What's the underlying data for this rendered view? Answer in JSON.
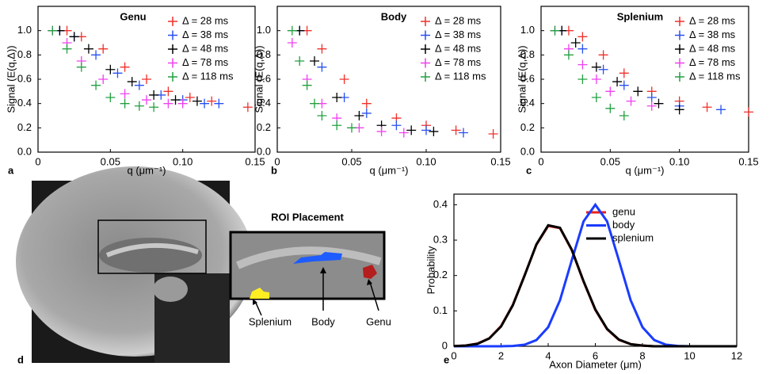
{
  "chart_data": [
    {
      "type": "scatter",
      "title": "Genu",
      "panel_label": "a",
      "xlabel": "q (μm⁻¹)",
      "ylabel": "Signal  (E(q,Δ))",
      "xlim": [
        0,
        0.15
      ],
      "ylim": [
        0,
        1.2
      ],
      "xticks": [
        0,
        0.05,
        {
          "value": 0.1,
          "label": "0.10"
        },
        0.15
      ],
      "yticks": [
        {
          "value": 0,
          "label": "0.0"
        },
        0.2,
        0.4,
        0.6,
        0.8,
        {
          "value": 1,
          "label": "1.0"
        }
      ],
      "series": [
        {
          "name": "Δ = 28 ms",
          "color": "#f0302a",
          "x": [
            0.02,
            0.03,
            0.045,
            0.06,
            0.075,
            0.09,
            0.105,
            0.12,
            0.145
          ],
          "values": [
            1.0,
            0.95,
            0.85,
            0.7,
            0.6,
            0.5,
            0.45,
            0.42,
            0.37
          ]
        },
        {
          "name": "Δ = 38 ms",
          "color": "#2850f0",
          "x": [
            0.015,
            0.025,
            0.04,
            0.055,
            0.07,
            0.085,
            0.1,
            0.115,
            0.125
          ],
          "values": [
            1.0,
            0.95,
            0.8,
            0.65,
            0.55,
            0.47,
            0.43,
            0.4,
            0.4
          ]
        },
        {
          "name": "Δ = 48 ms",
          "color": "#000000",
          "x": [
            0.015,
            0.025,
            0.035,
            0.05,
            0.065,
            0.08,
            0.095,
            0.11
          ],
          "values": [
            1.0,
            0.95,
            0.85,
            0.68,
            0.58,
            0.47,
            0.43,
            0.42
          ]
        },
        {
          "name": "Δ = 78 ms",
          "color": "#f040f0",
          "x": [
            0.01,
            0.02,
            0.03,
            0.045,
            0.06,
            0.075,
            0.09,
            0.1
          ],
          "values": [
            1.0,
            0.9,
            0.75,
            0.6,
            0.48,
            0.43,
            0.4,
            0.4
          ]
        },
        {
          "name": "Δ = 118 ms",
          "color": "#22a040",
          "x": [
            0.01,
            0.02,
            0.03,
            0.04,
            0.05,
            0.06,
            0.07,
            0.08
          ],
          "values": [
            1.0,
            0.85,
            0.7,
            0.55,
            0.45,
            0.4,
            0.38,
            0.37
          ]
        }
      ]
    },
    {
      "type": "scatter",
      "title": "Body",
      "panel_label": "b",
      "xlabel": "q (μm⁻¹)",
      "ylabel": "Signal  (E(q,Δ))",
      "xlim": [
        0,
        0.15
      ],
      "ylim": [
        0,
        1.2
      ],
      "xticks": [
        0,
        0.05,
        {
          "value": 0.1,
          "label": "0.10"
        },
        0.15
      ],
      "yticks": [
        {
          "value": 0,
          "label": "0.0"
        },
        0.2,
        0.4,
        0.6,
        0.8,
        {
          "value": 1,
          "label": "1.0"
        }
      ],
      "series": [
        {
          "name": "Δ = 28 ms",
          "color": "#f0302a",
          "x": [
            0.02,
            0.03,
            0.045,
            0.06,
            0.08,
            0.1,
            0.12,
            0.145
          ],
          "values": [
            1.0,
            0.85,
            0.6,
            0.4,
            0.28,
            0.22,
            0.18,
            0.15
          ]
        },
        {
          "name": "Δ = 38 ms",
          "color": "#2850f0",
          "x": [
            0.015,
            0.03,
            0.045,
            0.06,
            0.08,
            0.1,
            0.125
          ],
          "values": [
            1.0,
            0.7,
            0.45,
            0.32,
            0.22,
            0.18,
            0.16
          ]
        },
        {
          "name": "Δ = 48 ms",
          "color": "#000000",
          "x": [
            0.015,
            0.025,
            0.04,
            0.055,
            0.07,
            0.09,
            0.105
          ],
          "values": [
            1.0,
            0.75,
            0.45,
            0.3,
            0.22,
            0.18,
            0.17
          ]
        },
        {
          "name": "Δ = 78 ms",
          "color": "#f040f0",
          "x": [
            0.01,
            0.02,
            0.03,
            0.04,
            0.055,
            0.07,
            0.085
          ],
          "values": [
            0.9,
            0.6,
            0.4,
            0.28,
            0.2,
            0.17,
            0.16
          ]
        },
        {
          "name": "Δ = 118 ms",
          "color": "#22a040",
          "x": [
            0.01,
            0.015,
            0.02,
            0.025,
            0.03,
            0.04,
            0.05
          ],
          "values": [
            1.0,
            0.75,
            0.55,
            0.4,
            0.3,
            0.22,
            0.2
          ]
        }
      ]
    },
    {
      "type": "scatter",
      "title": "Splenium",
      "panel_label": "c",
      "xlabel": "q (μm⁻¹)",
      "ylabel": "Signal  (E(q,Δ))",
      "xlim": [
        0,
        0.15
      ],
      "ylim": [
        0,
        1.2
      ],
      "xticks": [
        0,
        0.05,
        {
          "value": 0.1,
          "label": "0.10"
        },
        0.15
      ],
      "yticks": [
        {
          "value": 0,
          "label": "0.0"
        },
        0.2,
        0.4,
        0.6,
        0.8,
        {
          "value": 1,
          "label": "1.0"
        }
      ],
      "series": [
        {
          "name": "Δ = 28 ms",
          "color": "#f0302a",
          "x": [
            0.02,
            0.03,
            0.045,
            0.06,
            0.08,
            0.1,
            0.12,
            0.15
          ],
          "values": [
            1.0,
            0.95,
            0.8,
            0.65,
            0.5,
            0.42,
            0.37,
            0.33
          ]
        },
        {
          "name": "Δ = 38 ms",
          "color": "#2850f0",
          "x": [
            0.015,
            0.03,
            0.045,
            0.06,
            0.08,
            0.1,
            0.13
          ],
          "values": [
            1.0,
            0.85,
            0.68,
            0.55,
            0.45,
            0.38,
            0.35
          ]
        },
        {
          "name": "Δ = 48 ms",
          "color": "#000000",
          "x": [
            0.015,
            0.025,
            0.04,
            0.055,
            0.07,
            0.085,
            0.1
          ],
          "values": [
            1.0,
            0.9,
            0.7,
            0.58,
            0.5,
            0.4,
            0.35
          ]
        },
        {
          "name": "Δ = 78 ms",
          "color": "#f040f0",
          "x": [
            0.01,
            0.02,
            0.03,
            0.04,
            0.05,
            0.065,
            0.08
          ],
          "values": [
            1.0,
            0.85,
            0.72,
            0.6,
            0.5,
            0.42,
            0.38
          ]
        },
        {
          "name": "Δ = 118 ms",
          "color": "#22a040",
          "x": [
            0.01,
            0.02,
            0.03,
            0.04,
            0.05,
            0.06
          ],
          "values": [
            1.0,
            0.8,
            0.6,
            0.45,
            0.36,
            0.3
          ]
        }
      ]
    },
    {
      "type": "line",
      "panel_label": "e",
      "xlabel": "Axon Diameter (μm)",
      "ylabel": "Probability",
      "xlim": [
        0,
        12
      ],
      "ylim": [
        0,
        0.43
      ],
      "xticks": [
        0,
        2,
        4,
        6,
        8,
        10,
        12
      ],
      "yticks": [
        0,
        0.1,
        0.2,
        0.3,
        0.4
      ],
      "x": [
        0,
        0.5,
        1,
        1.5,
        2,
        2.5,
        3,
        3.5,
        4,
        4.5,
        5,
        5.5,
        6,
        6.5,
        7,
        7.5,
        8,
        8.5,
        9,
        9.5,
        10,
        10.5,
        11,
        11.5,
        12
      ],
      "series": [
        {
          "name": "genu",
          "color": "#e8221a",
          "values": [
            0.0005,
            0.002,
            0.0075,
            0.0225,
            0.057,
            0.117,
            0.201,
            0.287,
            0.34,
            0.334,
            0.272,
            0.183,
            0.103,
            0.048,
            0.018,
            0.006,
            0.002,
            0,
            0,
            0,
            0,
            0,
            0,
            0,
            0
          ]
        },
        {
          "name": "body",
          "color": "#1a3cff",
          "values": [
            0,
            0,
            0,
            0,
            0,
            0.0009,
            0.0044,
            0.0175,
            0.054,
            0.13,
            0.243,
            0.353,
            0.4,
            0.353,
            0.243,
            0.13,
            0.054,
            0.0175,
            0.0044,
            0.0009,
            0,
            0,
            0,
            0,
            0
          ]
        },
        {
          "name": "splenium",
          "color": "#000000",
          "values": [
            0.0005,
            0.002,
            0.007,
            0.022,
            0.056,
            0.116,
            0.2,
            0.288,
            0.342,
            0.335,
            0.273,
            0.184,
            0.104,
            0.049,
            0.019,
            0.006,
            0.002,
            0,
            0,
            0,
            0,
            0,
            0,
            0,
            0
          ]
        }
      ]
    }
  ],
  "figure_d": {
    "panel_label": "d",
    "inset_title": "ROI Placement",
    "labels": [
      "Splenium",
      "Body",
      "Genu"
    ]
  }
}
